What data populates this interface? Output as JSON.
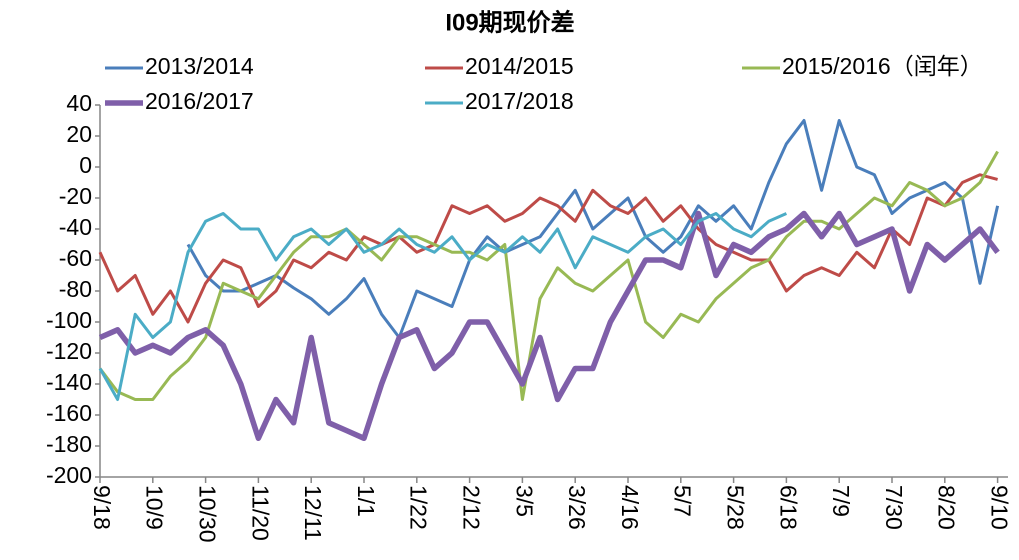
{
  "chart_data": {
    "type": "line",
    "title": "I09期现价差",
    "categories": [
      "9/18",
      null,
      null,
      "10/9",
      null,
      null,
      "10/30",
      null,
      null,
      "11/20",
      null,
      null,
      "12/11",
      null,
      null,
      "1/1",
      null,
      null,
      "1/22",
      null,
      null,
      "2/12",
      null,
      null,
      "3/5",
      null,
      null,
      "3/26",
      null,
      null,
      "4/16",
      null,
      null,
      "5/7",
      null,
      null,
      "5/28",
      null,
      null,
      "6/18",
      null,
      null,
      "7/9",
      null,
      null,
      "7/30",
      null,
      null,
      "8/20",
      null,
      null,
      "9/10"
    ],
    "ylim": [
      -200,
      40
    ],
    "yticks": [
      -200,
      -180,
      -160,
      -140,
      -120,
      -100,
      -80,
      -60,
      -40,
      -20,
      0,
      20,
      40
    ],
    "series": [
      {
        "name": "2013/2014",
        "color": "#4a7ebb",
        "width": 3,
        "values": [
          null,
          null,
          null,
          null,
          null,
          -50,
          -70,
          -80,
          -80,
          -75,
          -70,
          -78,
          -85,
          -95,
          -85,
          -72,
          -95,
          -110,
          -80,
          -85,
          -90,
          -60,
          -45,
          -55,
          -50,
          -45,
          -30,
          -15,
          -40,
          -30,
          -20,
          -45,
          -55,
          -45,
          -25,
          -35,
          -25,
          -40,
          -10,
          15,
          30,
          -15,
          30,
          0,
          -5,
          -30,
          -20,
          -15,
          -10,
          -20,
          -75,
          -25
        ]
      },
      {
        "name": "2014/2015",
        "color": "#be4b48",
        "width": 3,
        "values": [
          -55,
          -80,
          -70,
          -95,
          -80,
          -100,
          -75,
          -60,
          -65,
          -90,
          -80,
          -60,
          -65,
          -55,
          -60,
          -45,
          -50,
          -45,
          -55,
          -50,
          -25,
          -30,
          -25,
          -35,
          -30,
          -20,
          -25,
          -35,
          -15,
          -25,
          -30,
          -20,
          -35,
          -25,
          -40,
          -50,
          -55,
          -60,
          -60,
          -80,
          -70,
          -65,
          -70,
          -55,
          -65,
          -40,
          -50,
          -20,
          -25,
          -10,
          -5,
          -8
        ]
      },
      {
        "name": "2015/2016（闰年）",
        "color": "#98b954",
        "width": 3,
        "values": [
          -130,
          -145,
          -150,
          -150,
          -135,
          -125,
          -110,
          -75,
          -80,
          -85,
          -70,
          -55,
          -45,
          -45,
          -40,
          -50,
          -60,
          -45,
          -45,
          -50,
          -55,
          -55,
          -60,
          -50,
          -150,
          -85,
          -65,
          -75,
          -80,
          -70,
          -60,
          -100,
          -110,
          -95,
          -100,
          -85,
          -75,
          -65,
          -60,
          -45,
          -35,
          -35,
          -40,
          -30,
          -20,
          -25,
          -10,
          -15,
          -25,
          -20,
          -10,
          10
        ]
      },
      {
        "name": "2016/2017",
        "color": "#7f5fa9",
        "width": 5.5,
        "values": [
          -110,
          -105,
          -120,
          -115,
          -120,
          -110,
          -105,
          -115,
          -140,
          -175,
          -150,
          -165,
          -110,
          -165,
          -170,
          -175,
          -140,
          -110,
          -105,
          -130,
          -120,
          -100,
          -100,
          -120,
          -140,
          -110,
          -150,
          -130,
          -130,
          -100,
          -80,
          -60,
          -60,
          -65,
          -30,
          -70,
          -50,
          -55,
          -45,
          -40,
          -30,
          -45,
          -30,
          -50,
          -45,
          -40,
          -80,
          -50,
          -60,
          -50,
          -40,
          -55
        ]
      },
      {
        "name": "2017/2018",
        "color": "#4bacc6",
        "width": 3,
        "values": [
          -130,
          -150,
          -95,
          -110,
          -100,
          -55,
          -35,
          -30,
          -40,
          -40,
          -60,
          -45,
          -40,
          -50,
          -40,
          -55,
          -50,
          -40,
          -50,
          -55,
          -45,
          -60,
          -50,
          -55,
          -45,
          -55,
          -40,
          -65,
          -45,
          -50,
          -55,
          -45,
          -40,
          -50,
          -35,
          -30,
          -40,
          -45,
          -35,
          -30,
          null,
          null,
          null,
          null,
          null,
          null,
          null,
          null,
          null,
          null,
          null,
          null
        ]
      }
    ]
  }
}
